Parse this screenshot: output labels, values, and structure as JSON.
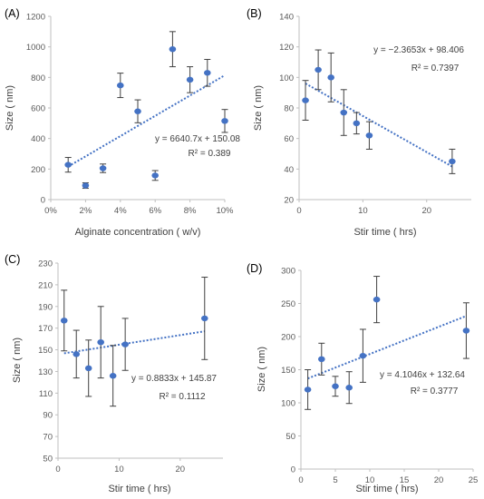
{
  "chart_data": [
    {
      "type": "scatter",
      "panel_label": "(A)",
      "xlabel": "Alginate concentration ( w/v)",
      "ylabel": "Size ( nm)",
      "xlim": [
        0,
        0.1
      ],
      "ylim": [
        0,
        1200
      ],
      "x_ticks": [
        0,
        0.02,
        0.04,
        0.06,
        0.08,
        0.1
      ],
      "x_tick_labels": [
        "0%",
        "2%",
        "4%",
        "6%",
        "8%",
        "10%"
      ],
      "y_ticks": [
        0,
        200,
        400,
        600,
        800,
        1000,
        1200
      ],
      "y_tick_labels": [
        "0",
        "200",
        "400",
        "600",
        "800",
        "1000",
        "1200"
      ],
      "points": [
        {
          "x": 0.01,
          "y": 228,
          "err": 48
        },
        {
          "x": 0.02,
          "y": 92,
          "err": 18
        },
        {
          "x": 0.03,
          "y": 205,
          "err": 28
        },
        {
          "x": 0.04,
          "y": 748,
          "err": 80
        },
        {
          "x": 0.05,
          "y": 578,
          "err": 75
        },
        {
          "x": 0.06,
          "y": 158,
          "err": 32
        },
        {
          "x": 0.07,
          "y": 985,
          "err": 115
        },
        {
          "x": 0.08,
          "y": 785,
          "err": 85
        },
        {
          "x": 0.09,
          "y": 830,
          "err": 88
        },
        {
          "x": 0.1,
          "y": 515,
          "err": 75
        }
      ],
      "trendline": {
        "slope": 6640.7,
        "intercept": 150.08,
        "x_range": [
          0.01,
          0.1
        ]
      },
      "equation": "y = 6640.7x + 150.08",
      "r_squared": "R² = 0.389",
      "colors": {
        "marker": "#4472C4",
        "trend": "#4472C4",
        "error": "#404040"
      }
    },
    {
      "type": "scatter",
      "panel_label": "(B)",
      "xlabel": "Stir time ( hrs)",
      "ylabel": "Size ( nm)",
      "xlim": [
        0,
        27
      ],
      "ylim": [
        20,
        140
      ],
      "x_ticks": [
        0,
        10,
        20
      ],
      "x_tick_labels": [
        "0",
        "10",
        "20"
      ],
      "y_ticks": [
        20,
        40,
        60,
        80,
        100,
        120,
        140
      ],
      "y_tick_labels": [
        "20",
        "40",
        "60",
        "80",
        "100",
        "120",
        "140"
      ],
      "points": [
        {
          "x": 1,
          "y": 85,
          "err": 13
        },
        {
          "x": 3,
          "y": 105,
          "err": 13
        },
        {
          "x": 5,
          "y": 100,
          "err": 16
        },
        {
          "x": 7,
          "y": 77,
          "err": 15
        },
        {
          "x": 9,
          "y": 70,
          "err": 7
        },
        {
          "x": 11,
          "y": 62,
          "err": 9
        },
        {
          "x": 24,
          "y": 45,
          "err": 8
        }
      ],
      "trendline": {
        "slope": -2.3653,
        "intercept": 98.406,
        "x_range": [
          1,
          24
        ]
      },
      "equation": "y = −2.3653x + 98.406",
      "r_squared": "R² = 0.7397",
      "colors": {
        "marker": "#4472C4",
        "trend": "#4472C4",
        "error": "#404040"
      }
    },
    {
      "type": "scatter",
      "panel_label": "(C)",
      "xlabel": "Stir time ( hrs)",
      "ylabel": "Size ( nm)",
      "xlim": [
        0,
        27
      ],
      "ylim": [
        50,
        230
      ],
      "x_ticks": [
        0,
        10,
        20
      ],
      "x_tick_labels": [
        "0",
        "10",
        "20"
      ],
      "y_ticks": [
        50,
        70,
        90,
        110,
        130,
        150,
        170,
        190,
        210,
        230
      ],
      "y_tick_labels": [
        "50",
        "70",
        "90",
        "110",
        "130",
        "150",
        "170",
        "190",
        "210",
        "230"
      ],
      "points": [
        {
          "x": 1,
          "y": 177,
          "err": 28
        },
        {
          "x": 3,
          "y": 146,
          "err": 22
        },
        {
          "x": 5,
          "y": 133,
          "err": 26
        },
        {
          "x": 7,
          "y": 157,
          "err": 33
        },
        {
          "x": 9,
          "y": 126,
          "err": 28
        },
        {
          "x": 11,
          "y": 155,
          "err": 24
        },
        {
          "x": 24,
          "y": 179,
          "err": 38
        }
      ],
      "trendline": {
        "slope": 0.8833,
        "intercept": 145.87,
        "x_range": [
          1,
          24
        ]
      },
      "equation": "y = 0.8833x + 145.87",
      "r_squared": "R² = 0.1112",
      "colors": {
        "marker": "#4472C4",
        "trend": "#4472C4",
        "error": "#404040"
      }
    },
    {
      "type": "scatter",
      "panel_label": "(D)",
      "xlabel": "Stir time ( hrs)",
      "ylabel": "Size ( nm)",
      "xlim": [
        0,
        25
      ],
      "ylim": [
        0,
        300
      ],
      "x_ticks": [
        0,
        5,
        10,
        15,
        20,
        25
      ],
      "x_tick_labels": [
        "0",
        "5",
        "10",
        "15",
        "20",
        "25"
      ],
      "y_ticks": [
        0,
        50,
        100,
        150,
        200,
        250,
        300
      ],
      "y_tick_labels": [
        "0",
        "50",
        "100",
        "150",
        "200",
        "250",
        "300"
      ],
      "points": [
        {
          "x": 1,
          "y": 120,
          "err": 30
        },
        {
          "x": 3,
          "y": 166,
          "err": 24
        },
        {
          "x": 5,
          "y": 125,
          "err": 15
        },
        {
          "x": 7,
          "y": 123,
          "err": 24
        },
        {
          "x": 9,
          "y": 171,
          "err": 40
        },
        {
          "x": 11,
          "y": 256,
          "err": 35
        },
        {
          "x": 24,
          "y": 209,
          "err": 42
        }
      ],
      "trendline": {
        "slope": 4.1046,
        "intercept": 132.64,
        "x_range": [
          1,
          24
        ]
      },
      "equation": "y = 4.1046x + 132.64",
      "r_squared": "R² = 0.3777",
      "colors": {
        "marker": "#4472C4",
        "trend": "#4472C4",
        "error": "#404040"
      }
    }
  ]
}
